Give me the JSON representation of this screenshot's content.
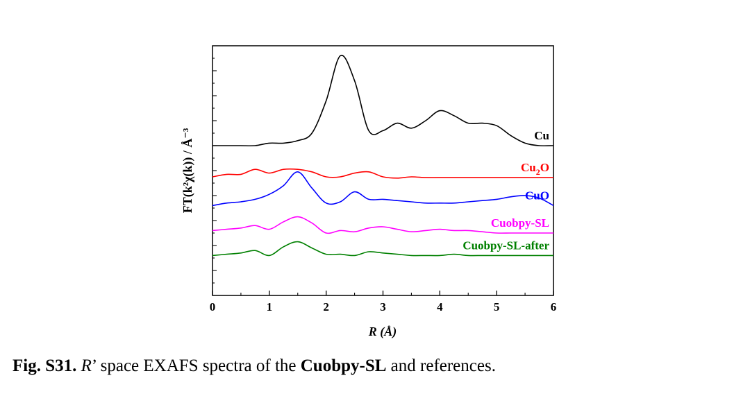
{
  "figure": {
    "caption_label": "Fig. S31.",
    "caption_r": "R",
    "caption_mid": "’ space EXAFS spectra of the",
    "caption_bold": "Cuobpy-SL",
    "caption_end": "and references."
  },
  "chart_data": {
    "type": "line",
    "title": "",
    "xlabel": "R (Å)",
    "ylabel": "FT(k²χ(k)) / Å⁻³",
    "xlim": [
      0,
      6
    ],
    "ylim": [
      0,
      10
    ],
    "xticks": [
      "0",
      "1",
      "2",
      "3",
      "4",
      "5",
      "6"
    ],
    "yticks_labeled": false,
    "grid": false,
    "legend": "labels above right end of each curve",
    "x": [
      0,
      0.25,
      0.5,
      0.75,
      1,
      1.25,
      1.5,
      1.75,
      2,
      2.25,
      2.5,
      2.75,
      3,
      3.25,
      3.5,
      3.75,
      4,
      4.25,
      4.5,
      4.75,
      5,
      5.25,
      5.5,
      5.75,
      6
    ],
    "series": [
      {
        "name": "Cu",
        "color": "#000000",
        "values": [
          6.0,
          6.0,
          6.0,
          6.0,
          6.1,
          6.1,
          6.2,
          6.5,
          7.8,
          9.6,
          8.6,
          6.6,
          6.6,
          6.9,
          6.7,
          7.0,
          7.4,
          7.2,
          6.9,
          6.9,
          6.8,
          6.4,
          6.1,
          6.0,
          6.0
        ]
      },
      {
        "name": "Cu2O",
        "color": "#ff0000",
        "values": [
          4.75,
          4.85,
          4.85,
          5.05,
          4.9,
          5.05,
          5.05,
          4.95,
          4.75,
          4.75,
          4.9,
          4.95,
          4.75,
          4.7,
          4.75,
          4.72,
          4.72,
          4.72,
          4.72,
          4.72,
          4.72,
          4.72,
          4.72,
          4.72,
          4.72
        ]
      },
      {
        "name": "CuO",
        "color": "#0000ff",
        "values": [
          3.6,
          3.7,
          3.75,
          3.85,
          4.05,
          4.4,
          4.95,
          4.3,
          3.7,
          3.75,
          4.15,
          3.85,
          3.85,
          3.8,
          3.75,
          3.7,
          3.7,
          3.7,
          3.75,
          3.8,
          3.85,
          3.95,
          4.0,
          3.9,
          3.6
        ]
      },
      {
        "name": "Cuobpy-SL",
        "color": "#ff00ff",
        "values": [
          2.6,
          2.65,
          2.7,
          2.8,
          2.65,
          2.95,
          3.15,
          2.9,
          2.5,
          2.6,
          2.55,
          2.7,
          2.75,
          2.65,
          2.55,
          2.6,
          2.65,
          2.6,
          2.6,
          2.55,
          2.5,
          2.5,
          2.5,
          2.5,
          2.5
        ]
      },
      {
        "name": "Cuobpy-SL-after",
        "color": "#008000",
        "values": [
          1.6,
          1.65,
          1.7,
          1.8,
          1.6,
          1.95,
          2.15,
          1.9,
          1.65,
          1.65,
          1.6,
          1.75,
          1.7,
          1.65,
          1.6,
          1.6,
          1.6,
          1.65,
          1.6,
          1.6,
          1.6,
          1.6,
          1.6,
          1.6,
          1.6
        ]
      }
    ]
  }
}
